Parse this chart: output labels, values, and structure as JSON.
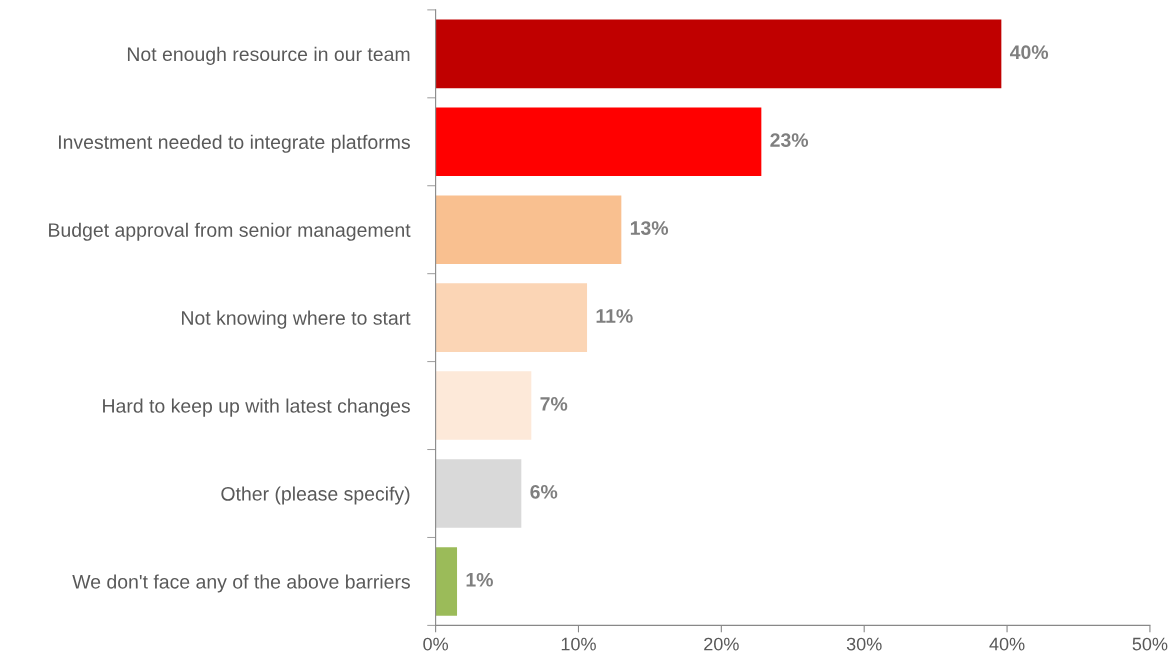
{
  "chart_data": {
    "type": "bar",
    "orientation": "horizontal",
    "categories": [
      "Not enough resource in our team",
      "Investment needed to integrate platforms",
      "Budget approval from senior management",
      "Not knowing where to start",
      "Hard to keep up with latest changes",
      "Other (please specify)",
      "We don't face any of the above barriers"
    ],
    "values": [
      39.6,
      22.8,
      13.0,
      10.6,
      6.7,
      6.0,
      1.5
    ],
    "value_labels": [
      "40%",
      "23%",
      "13%",
      "11%",
      "7%",
      "6%",
      "1%"
    ],
    "colors": [
      "#c00000",
      "#ff0000",
      "#f9c090",
      "#fbd5b5",
      "#fde9d9",
      "#d9d9d9",
      "#9bbb59"
    ],
    "xlim": [
      0,
      50
    ],
    "xticks": [
      {
        "value": 0,
        "label": "0%"
      },
      {
        "value": 10,
        "label": "10%"
      },
      {
        "value": 20,
        "label": "20%"
      },
      {
        "value": 30,
        "label": "30%"
      },
      {
        "value": 40,
        "label": "40%"
      },
      {
        "value": 50,
        "label": "50%"
      }
    ],
    "grid": false,
    "legend": false
  }
}
